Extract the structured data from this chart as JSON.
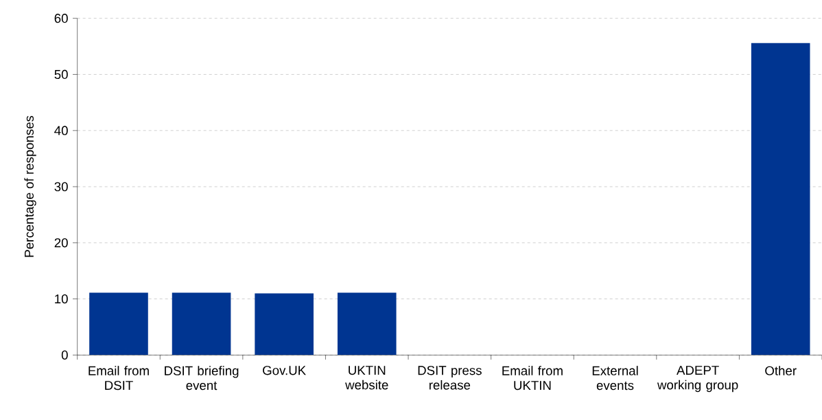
{
  "chart_data": {
    "type": "bar",
    "ylabel": "Percentage of responses",
    "categories": [
      "Email from DSIT",
      "DSIT briefing event",
      "Gov.UK",
      "UKTIN website",
      "DSIT press release",
      "Email from UKTIN",
      "External events",
      "ADEPT working group",
      "Other"
    ],
    "values": [
      11.1,
      11.1,
      11.0,
      11.1,
      0,
      0,
      0,
      0,
      55.6
    ],
    "color": "#003591",
    "ylim": [
      0,
      60
    ],
    "yticks": [
      0,
      10,
      20,
      30,
      40,
      50,
      60
    ],
    "grid": "y"
  }
}
